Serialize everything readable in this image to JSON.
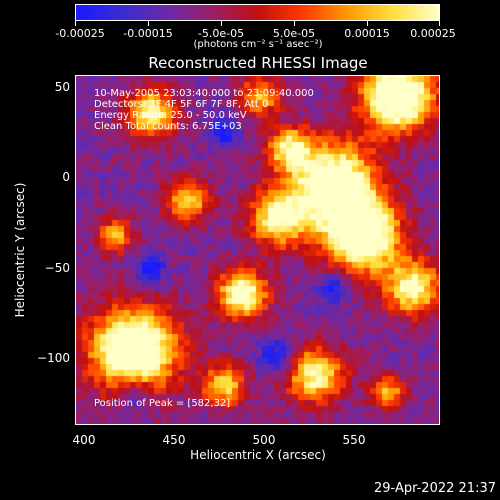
{
  "colorbar": {
    "colors": [
      "#1a1aff",
      "#3a2bd0",
      "#6a2aa8",
      "#9a1f6a",
      "#c01010",
      "#ff3a00",
      "#ff9a00",
      "#ffe040",
      "#ffffc8"
    ],
    "tick_labels": [
      "-0.00025",
      "-0.00015",
      "-5.0e-05",
      "5.0e-05",
      "0.00015",
      "0.00025"
    ],
    "units": "(photons cm⁻² s⁻¹ asec⁻²)"
  },
  "title": "Reconstructed RHESSI Image",
  "info": {
    "line1": "10-May-2005 23:03:40.000 to 23:09:40.000",
    "line2": "Detectors: 3F 4F 5F 6F 7F 8F, Att 0",
    "line3": "Energy Range: 25.0 - 50.0 keV",
    "line4": "Clean     Total counts: 6.75E+03"
  },
  "peak": "Position of Peak = [582,32]",
  "axes": {
    "xlabel": "Heliocentric X (arcsec)",
    "ylabel": "Heliocentric Y (arcsec)",
    "xticks": [
      "400",
      "450",
      "500",
      "550"
    ],
    "yticks": [
      "50",
      "0",
      "−50",
      "−100"
    ]
  },
  "timestamp": "29-Apr-2022 21:37"
}
